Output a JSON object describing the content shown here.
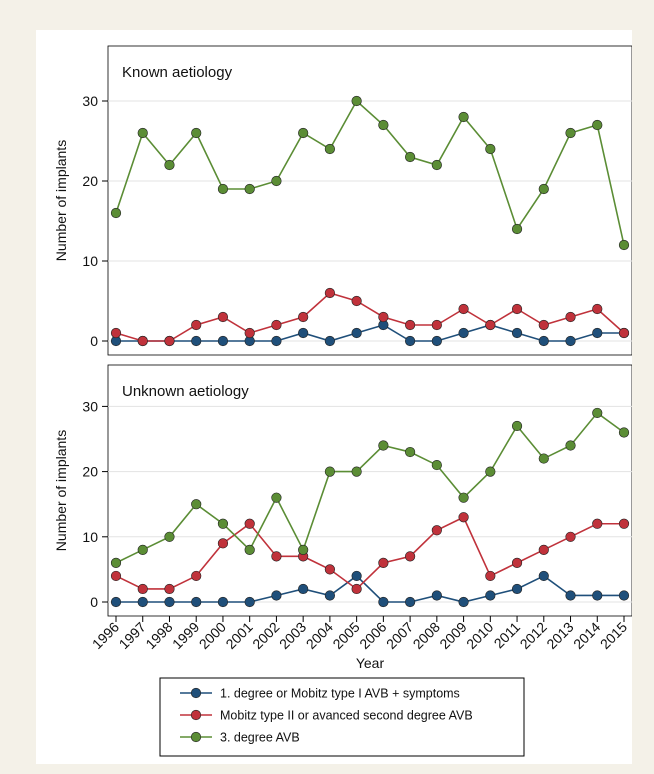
{
  "colors": {
    "series1": "#1f4f7a",
    "series2": "#c0323b",
    "series3": "#5b8d35",
    "grid": "#e3e3e3",
    "background": "#f4f1e8"
  },
  "chart_data": [
    {
      "type": "line",
      "title": "Known aetiology",
      "ylabel": "Number of implants",
      "xlabel": "",
      "ylim": [
        0,
        36
      ],
      "yticks": [
        0,
        10,
        20,
        30
      ],
      "grid": true,
      "x": [
        1996,
        1997,
        1998,
        1999,
        2000,
        2001,
        2002,
        2003,
        2004,
        2005,
        2006,
        2007,
        2008,
        2009,
        2010,
        2011,
        2012,
        2013,
        2014,
        2015
      ],
      "series": [
        {
          "name": "1. degree or Mobitz type I AVB + symptoms",
          "values": [
            0,
            0,
            0,
            0,
            0,
            0,
            0,
            1,
            0,
            1,
            2,
            0,
            0,
            1,
            2,
            1,
            0,
            0,
            1,
            1
          ]
        },
        {
          "name": "Mobitz type II or avanced second degree AVB",
          "values": [
            1,
            0,
            0,
            2,
            3,
            1,
            2,
            3,
            6,
            5,
            3,
            2,
            2,
            4,
            2,
            4,
            2,
            3,
            4,
            1
          ]
        },
        {
          "name": "3. degree AVB",
          "values": [
            16,
            26,
            22,
            26,
            19,
            19,
            20,
            26,
            24,
            30,
            27,
            23,
            22,
            28,
            24,
            14,
            19,
            26,
            27,
            12
          ]
        }
      ]
    },
    {
      "type": "line",
      "title": "Unknown aetiology",
      "ylabel": "Number of implants",
      "xlabel": "Year",
      "ylim": [
        0,
        36
      ],
      "yticks": [
        0,
        10,
        20,
        30
      ],
      "grid": true,
      "x": [
        1996,
        1997,
        1998,
        1999,
        2000,
        2001,
        2002,
        2003,
        2004,
        2005,
        2006,
        2007,
        2008,
        2009,
        2010,
        2011,
        2012,
        2013,
        2014,
        2015
      ],
      "series": [
        {
          "name": "1. degree or Mobitz type I AVB + symptoms",
          "values": [
            0,
            0,
            0,
            0,
            0,
            0,
            1,
            2,
            1,
            4,
            0,
            0,
            1,
            0,
            1,
            2,
            4,
            1,
            1,
            1
          ]
        },
        {
          "name": "Mobitz type II or avanced second degree AVB",
          "values": [
            4,
            2,
            2,
            4,
            9,
            12,
            7,
            7,
            5,
            2,
            6,
            7,
            11,
            13,
            4,
            6,
            8,
            10,
            12,
            12
          ]
        },
        {
          "name": "3. degree AVB",
          "values": [
            6,
            8,
            10,
            15,
            12,
            8,
            16,
            8,
            20,
            20,
            24,
            23,
            21,
            16,
            20,
            27,
            22,
            24,
            29,
            26
          ]
        }
      ]
    }
  ],
  "legend": {
    "placement": "bottom",
    "items": [
      "1. degree or Mobitz type I AVB + symptoms",
      "Mobitz type II or avanced second degree AVB",
      "3. degree AVB"
    ]
  }
}
